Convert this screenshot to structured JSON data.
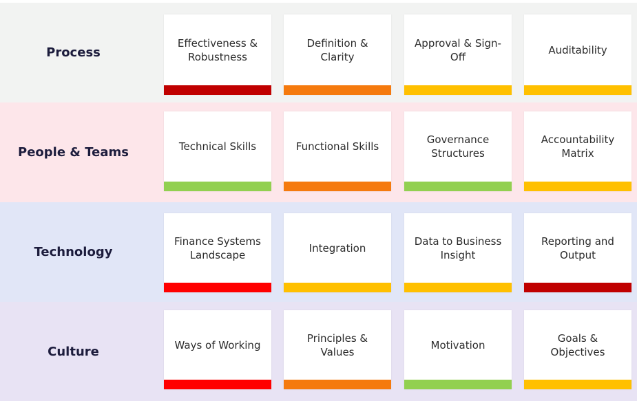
{
  "colors": {
    "dark_red": "#c00000",
    "red": "#ff0000",
    "orange": "#f57a0e",
    "amber": "#ffc000",
    "green": "#92d050"
  },
  "rows": [
    {
      "label": "Process",
      "background": "#f2f3f2",
      "cards": [
        {
          "text": "Effectiveness & Robustness",
          "status": "dark_red"
        },
        {
          "text": "Definition & Clarity",
          "status": "orange"
        },
        {
          "text": "Approval & Sign-Off",
          "status": "amber"
        },
        {
          "text": "Auditability",
          "status": "amber"
        }
      ]
    },
    {
      "label": "People & Teams",
      "background": "#fde6ea",
      "cards": [
        {
          "text": "Technical Skills",
          "status": "green"
        },
        {
          "text": "Functional Skills",
          "status": "orange"
        },
        {
          "text": "Governance Structures",
          "status": "green"
        },
        {
          "text": "Accountability Matrix",
          "status": "amber"
        }
      ]
    },
    {
      "label": "Technology",
      "background": "#e1e6f7",
      "cards": [
        {
          "text": "Finance Systems Landscape",
          "status": "red"
        },
        {
          "text": "Integration",
          "status": "amber"
        },
        {
          "text": "Data to Business Insight",
          "status": "amber"
        },
        {
          "text": "Reporting and Output",
          "status": "dark_red"
        }
      ]
    },
    {
      "label": "Culture",
      "background": "#e8e3f4",
      "cards": [
        {
          "text": "Ways of Working",
          "status": "red"
        },
        {
          "text": "Principles & Values",
          "status": "orange"
        },
        {
          "text": "Motivation",
          "status": "green"
        },
        {
          "text": "Goals & Objectives",
          "status": "amber"
        }
      ]
    }
  ]
}
